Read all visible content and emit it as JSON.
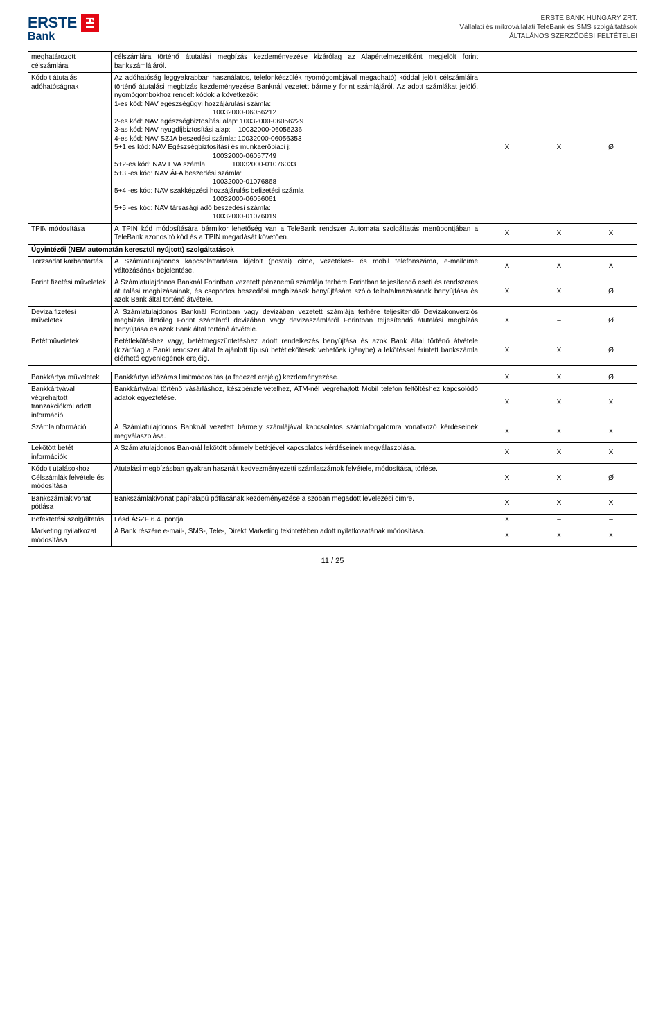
{
  "header": {
    "logo_erste": "ERSTE",
    "logo_bank": "Bank",
    "line1": "ERSTE BANK HUNGARY ZRT.",
    "line2": "Vállalati és mikrovállalati TeleBank és SMS szolgáltatások",
    "line3": "ÁLTALÁNOS SZERZŐDÉSI FELTÉTELEI"
  },
  "colors": {
    "brand_blue": "#003a70",
    "brand_red": "#e30613",
    "text": "#000000",
    "border": "#000000",
    "bg": "#ffffff"
  },
  "mark": {
    "x": "X",
    "dash": "–",
    "empty": "Ø"
  },
  "section_header": "Ügyintézői (NEM automatán keresztül nyújtott) szolgáltatások",
  "rows1": [
    {
      "name": "meghatározott célszámlára",
      "desc": "célszámlára történő átutalási megbízás kezdeményezése kizárólag az Alapértelmezettként megjelölt forint bankszámlájáról.",
      "a": "",
      "b": "",
      "c": ""
    },
    {
      "name": "Kódolt átutalás adóhatóságnak",
      "desc": "Az adóhatóság leggyakrabban használatos, telefonkészülék nyomógombjával megadható) kóddal jelölt célszámláira történő átutalási megbízás kezdeményezése Banknál vezetett bármely forint számlájáról. Az adott számlákat jelölő, nyomógombokhoz rendelt kódok a következők:\n1-es kód: NAV egészségügyi hozzájárulási számla:\n                                                   10032000-06056212\n2-es kód: NAV egészségbiztosítási alap: 10032000-06056229\n3-as kód: NAV nyugdíjbiztosítási alap:    10032000-06056236\n4-es kód: NAV SZJA beszedési számla: 10032000-06056353\n5+1 es kód: NAV Egészségbiztosítási és munkaerőpiaci j:\n                                                   10032000-06057749\n5+2-es kód: NAV EVA számla.             10032000-01076033\n5+3 -es kód: NAV ÁFA beszedési számla:\n                                                   10032000-01076868\n5+4 -es kód: NAV szakképzési hozzájárulás befizetési számla\n                                                   10032000-06056061\n5+5 -es kód: NAV társasági adó beszedési számla:\n                                                   10032000-01076019",
      "a": "X",
      "b": "X",
      "c": "Ø"
    },
    {
      "name": "TPIN módosítása",
      "desc": "A TPIN kód módosítására bármikor lehetőség van a TeleBank rendszer Automata szolgáltatás menüpontjában a TeleBank azonosító kód és a TPIN megadását követően.",
      "a": "X",
      "b": "X",
      "c": "X"
    }
  ],
  "rows2": [
    {
      "name": "Törzsadat karbantartás",
      "desc": "A Számlatulajdonos kapcsolattartásra kijelölt (postai) címe, vezetékes- és mobil telefonszáma, e-mailcíme változásának bejelentése.",
      "a": "X",
      "b": "X",
      "c": "X"
    },
    {
      "name": "Forint fizetési műveletek",
      "desc": "A Számlatulajdonos Banknál Forintban vezetett pénznemű számlája terhére Forintban teljesítendő eseti és rendszeres átutalási megbízásainak, és csoportos beszedési megbízások benyújtására szóló felhatalmazásának benyújtása és azok Bank által történő átvétele.",
      "a": "X",
      "b": "X",
      "c": "Ø"
    },
    {
      "name": "Deviza fizetési műveletek",
      "desc": "A Számlatulajdonos Banknál Forintban vagy devizában vezetett számlája terhére teljesítendő Devizakonverziós megbízás illetőleg Forint számláról devizában vagy devizaszámláról Forintban teljesítendő átutalási megbízás benyújtása és azok Bank által történő átvétele.",
      "a": "X",
      "b": "–",
      "c": "Ø"
    },
    {
      "name": "Betétműveletek",
      "desc": "Betétlekötéshez vagy, betétmegszüntetéshez adott rendelkezés benyújtása és azok Bank által történő átvétele (kizárólag a Banki rendszer által felajánlott típusú betétlekötések vehetőek igénybe) a lekötéssel érintett bankszámla elérhető egyenlegének erejéig.",
      "a": "X",
      "b": "X",
      "c": "Ø"
    }
  ],
  "rows3": [
    {
      "name": "Bankkártya műveletek",
      "desc": "Bankkártya időzáras limitmódosítás (a fedezet erejéig) kezdeményezése.",
      "a": "X",
      "b": "X",
      "c": "Ø"
    },
    {
      "name": "Bankkártyával végrehajtott tranzakciókról adott információ",
      "desc": "Bankkártyával történő vásárláshoz, készpénzfelvételhez, ATM-nél végrehajtott Mobil telefon feltöltéshez kapcsolódó adatok egyeztetése.",
      "a": "X",
      "b": "X",
      "c": "X"
    },
    {
      "name": "Számlainformáció",
      "desc": "A Számlatulajdonos Banknál vezetett bármely számlájával kapcsolatos számlaforgalomra vonatkozó kérdéseinek megválaszolása.",
      "a": "X",
      "b": "X",
      "c": "X"
    },
    {
      "name": "Lekötött betét információk",
      "desc": "A Számlatulajdonos Banknál lekötött bármely betétjével kapcsolatos kérdéseinek megválaszolása.",
      "a": "X",
      "b": "X",
      "c": "X"
    },
    {
      "name": "Kódolt utalásokhoz Célszámlák felvétele és módosítása",
      "desc": "Átutalási megbízásban gyakran használt kedvezményezetti számlaszámok felvétele, módosítása, törlése.",
      "a": "X",
      "b": "X",
      "c": "Ø"
    },
    {
      "name": "Bankszámlakivonat pótlása",
      "desc": "Bankszámlakivonat papíralapú pótlásának kezdeményezése a szóban megadott levelezési címre.",
      "a": "X",
      "b": "X",
      "c": "X"
    },
    {
      "name": "Befektetési szolgáltatás",
      "desc": "Lásd ÁSZF 6.4. pontja",
      "a": "X",
      "b": "–",
      "c": "–"
    },
    {
      "name": "Marketing nyilatkozat módosítása",
      "desc": "A Bank részére e-mail-, SMS-, Tele-, Direkt Marketing tekintetében adott nyilatkozatának módosítása.",
      "a": "X",
      "b": "X",
      "c": "X"
    }
  ],
  "page_num": "11 / 25"
}
